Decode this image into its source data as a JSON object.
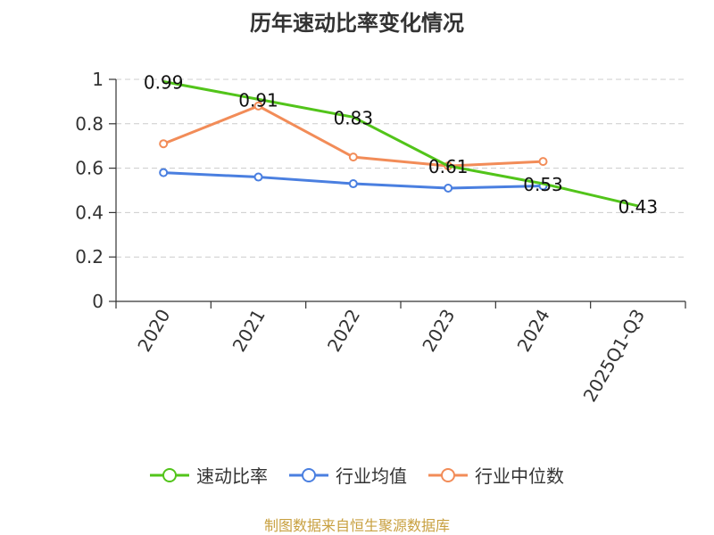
{
  "title": "历年速动比率变化情况",
  "source": "制图数据来自恒生聚源数据库",
  "chart_data": {
    "type": "line",
    "categories": [
      "2020",
      "2021",
      "2022",
      "2023",
      "2024",
      "2025Q1-Q3"
    ],
    "ylim": [
      0,
      1
    ],
    "yticks": [
      0,
      0.2,
      0.4,
      0.6,
      0.8,
      1
    ],
    "ytick_labels": [
      "0",
      "0.2",
      "0.4",
      "0.6",
      "0.8",
      "1"
    ],
    "grid": true,
    "legend_position": "bottom",
    "series": [
      {
        "name": "速动比率",
        "color": "#52c41a",
        "values": [
          0.99,
          0.91,
          0.83,
          0.61,
          0.53,
          0.43
        ],
        "labels": [
          "0.99",
          "0.91",
          "0.83",
          "0.61",
          "0.53",
          "0.43"
        ]
      },
      {
        "name": "行业均值",
        "color": "#4a7fe0",
        "values": [
          0.58,
          0.56,
          0.53,
          0.51,
          0.52,
          null
        ]
      },
      {
        "name": "行业中位数",
        "color": "#f28c58",
        "values": [
          0.71,
          0.88,
          0.65,
          0.61,
          0.63,
          null
        ]
      }
    ]
  }
}
